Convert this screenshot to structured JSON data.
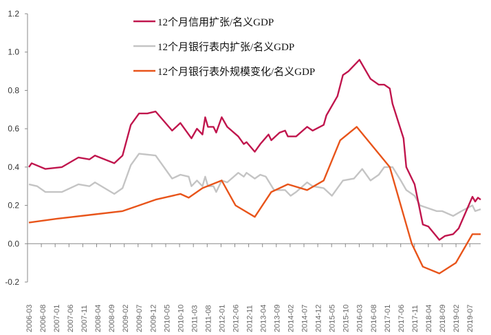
{
  "chart_data": {
    "type": "line",
    "title": "",
    "xlabel": "",
    "ylabel": "",
    "ylim": [
      -0.2,
      1.2
    ],
    "y_ticks": [
      "-0.2",
      "0.0",
      "0.2",
      "0.4",
      "0.6",
      "0.8",
      "1.0",
      "1.2"
    ],
    "x_range": [
      "2006-03",
      "2019-11"
    ],
    "x_ticks": [
      "2006-03",
      "2006-08",
      "2007-01",
      "2007-06",
      "2007-11",
      "2008-04",
      "2008-09",
      "2009-02",
      "2009-07",
      "2009-12",
      "2010-05",
      "2010-10",
      "2011-03",
      "2011-08",
      "2012-01",
      "2012-06",
      "2012-11",
      "2013-04",
      "2013-09",
      "2014-02",
      "2014-07",
      "2014-12",
      "2015-05",
      "2015-10",
      "2016-03",
      "2016-08",
      "2017-01",
      "2017-06",
      "2017-11",
      "2018-04",
      "2018-09",
      "2019-02",
      "2019-07"
    ],
    "grid": false,
    "legend_position": "top-center",
    "series": [
      {
        "name": "12个月信用扩张/名义GDP",
        "color": "#c0154d",
        "points": [
          [
            "2006-03",
            0.4
          ],
          [
            "2006-04",
            0.42
          ],
          [
            "2006-09",
            0.39
          ],
          [
            "2007-03",
            0.4
          ],
          [
            "2007-09",
            0.45
          ],
          [
            "2008-01",
            0.44
          ],
          [
            "2008-03",
            0.46
          ],
          [
            "2008-10",
            0.42
          ],
          [
            "2009-01",
            0.46
          ],
          [
            "2009-04",
            0.62
          ],
          [
            "2009-07",
            0.68
          ],
          [
            "2009-10",
            0.68
          ],
          [
            "2010-01",
            0.69
          ],
          [
            "2010-07",
            0.59
          ],
          [
            "2010-10",
            0.63
          ],
          [
            "2011-02",
            0.55
          ],
          [
            "2011-04",
            0.6
          ],
          [
            "2011-06",
            0.57
          ],
          [
            "2011-07",
            0.66
          ],
          [
            "2011-08",
            0.61
          ],
          [
            "2011-10",
            0.61
          ],
          [
            "2011-11",
            0.58
          ],
          [
            "2012-01",
            0.66
          ],
          [
            "2012-03",
            0.61
          ],
          [
            "2012-07",
            0.56
          ],
          [
            "2012-09",
            0.52
          ],
          [
            "2012-10",
            0.53
          ],
          [
            "2013-01",
            0.48
          ],
          [
            "2013-03",
            0.52
          ],
          [
            "2013-06",
            0.57
          ],
          [
            "2013-07",
            0.54
          ],
          [
            "2013-10",
            0.58
          ],
          [
            "2013-12",
            0.59
          ],
          [
            "2014-01",
            0.56
          ],
          [
            "2014-04",
            0.56
          ],
          [
            "2014-08",
            0.61
          ],
          [
            "2014-10",
            0.59
          ],
          [
            "2015-02",
            0.62
          ],
          [
            "2015-03",
            0.67
          ],
          [
            "2015-07",
            0.77
          ],
          [
            "2015-09",
            0.88
          ],
          [
            "2015-11",
            0.9
          ],
          [
            "2016-03",
            0.96
          ],
          [
            "2016-07",
            0.86
          ],
          [
            "2016-10",
            0.83
          ],
          [
            "2016-12",
            0.83
          ],
          [
            "2017-02",
            0.81
          ],
          [
            "2017-03",
            0.73
          ],
          [
            "2017-07",
            0.55
          ],
          [
            "2017-08",
            0.4
          ],
          [
            "2017-11",
            0.31
          ],
          [
            "2018-02",
            0.1
          ],
          [
            "2018-04",
            0.09
          ],
          [
            "2018-08",
            0.02
          ],
          [
            "2018-10",
            0.04
          ],
          [
            "2019-01",
            0.05
          ],
          [
            "2019-03",
            0.08
          ],
          [
            "2019-08",
            0.245
          ],
          [
            "2019-09",
            0.22
          ],
          [
            "2019-10",
            0.24
          ],
          [
            "2019-11",
            0.23
          ]
        ]
      },
      {
        "name": "12个月银行表内扩张/名义GDP",
        "color": "#c4c4c4",
        "points": [
          [
            "2006-03",
            0.31
          ],
          [
            "2006-06",
            0.3
          ],
          [
            "2006-09",
            0.27
          ],
          [
            "2007-03",
            0.27
          ],
          [
            "2007-09",
            0.31
          ],
          [
            "2008-01",
            0.3
          ],
          [
            "2008-03",
            0.32
          ],
          [
            "2008-10",
            0.26
          ],
          [
            "2009-01",
            0.29
          ],
          [
            "2009-04",
            0.41
          ],
          [
            "2009-07",
            0.47
          ],
          [
            "2010-01",
            0.46
          ],
          [
            "2010-07",
            0.34
          ],
          [
            "2010-10",
            0.36
          ],
          [
            "2011-01",
            0.35
          ],
          [
            "2011-02",
            0.3
          ],
          [
            "2011-04",
            0.33
          ],
          [
            "2011-06",
            0.3
          ],
          [
            "2011-07",
            0.35
          ],
          [
            "2011-08",
            0.3
          ],
          [
            "2011-10",
            0.3
          ],
          [
            "2011-11",
            0.27
          ],
          [
            "2012-01",
            0.33
          ],
          [
            "2012-03",
            0.32
          ],
          [
            "2012-07",
            0.37
          ],
          [
            "2012-09",
            0.35
          ],
          [
            "2012-10",
            0.37
          ],
          [
            "2013-01",
            0.34
          ],
          [
            "2013-03",
            0.36
          ],
          [
            "2013-05",
            0.35
          ],
          [
            "2013-08",
            0.28
          ],
          [
            "2013-12",
            0.28
          ],
          [
            "2014-02",
            0.25
          ],
          [
            "2014-04",
            0.27
          ],
          [
            "2014-08",
            0.32
          ],
          [
            "2014-10",
            0.3
          ],
          [
            "2015-02",
            0.29
          ],
          [
            "2015-05",
            0.25
          ],
          [
            "2015-09",
            0.33
          ],
          [
            "2016-01",
            0.34
          ],
          [
            "2016-04",
            0.39
          ],
          [
            "2016-07",
            0.33
          ],
          [
            "2016-10",
            0.36
          ],
          [
            "2016-12",
            0.4
          ],
          [
            "2017-03",
            0.4
          ],
          [
            "2017-06",
            0.33
          ],
          [
            "2017-08",
            0.28
          ],
          [
            "2017-11",
            0.25
          ],
          [
            "2018-01",
            0.2
          ],
          [
            "2018-07",
            0.17
          ],
          [
            "2018-09",
            0.17
          ],
          [
            "2019-01",
            0.145
          ],
          [
            "2019-04",
            0.17
          ],
          [
            "2019-08",
            0.2
          ],
          [
            "2019-09",
            0.17
          ],
          [
            "2019-11",
            0.18
          ]
        ]
      },
      {
        "name": "12个月银行表外规模变化/名义GDP",
        "color": "#e8541a",
        "points": [
          [
            "2006-03",
            0.11
          ],
          [
            "2007-01",
            0.13
          ],
          [
            "2008-01",
            0.15
          ],
          [
            "2009-01",
            0.17
          ],
          [
            "2009-07",
            0.2
          ],
          [
            "2010-01",
            0.23
          ],
          [
            "2010-10",
            0.26
          ],
          [
            "2011-01",
            0.24
          ],
          [
            "2011-06",
            0.29
          ],
          [
            "2012-01",
            0.33
          ],
          [
            "2012-06",
            0.2
          ],
          [
            "2013-01",
            0.14
          ],
          [
            "2013-07",
            0.27
          ],
          [
            "2014-01",
            0.31
          ],
          [
            "2014-08",
            0.28
          ],
          [
            "2015-02",
            0.33
          ],
          [
            "2015-08",
            0.54
          ],
          [
            "2016-02",
            0.61
          ],
          [
            "2017-02",
            0.4
          ],
          [
            "2017-10",
            0.0
          ],
          [
            "2018-02",
            -0.12
          ],
          [
            "2018-08",
            -0.155
          ],
          [
            "2019-02",
            -0.1
          ],
          [
            "2019-08",
            0.05
          ],
          [
            "2019-11",
            0.05
          ]
        ]
      }
    ]
  }
}
